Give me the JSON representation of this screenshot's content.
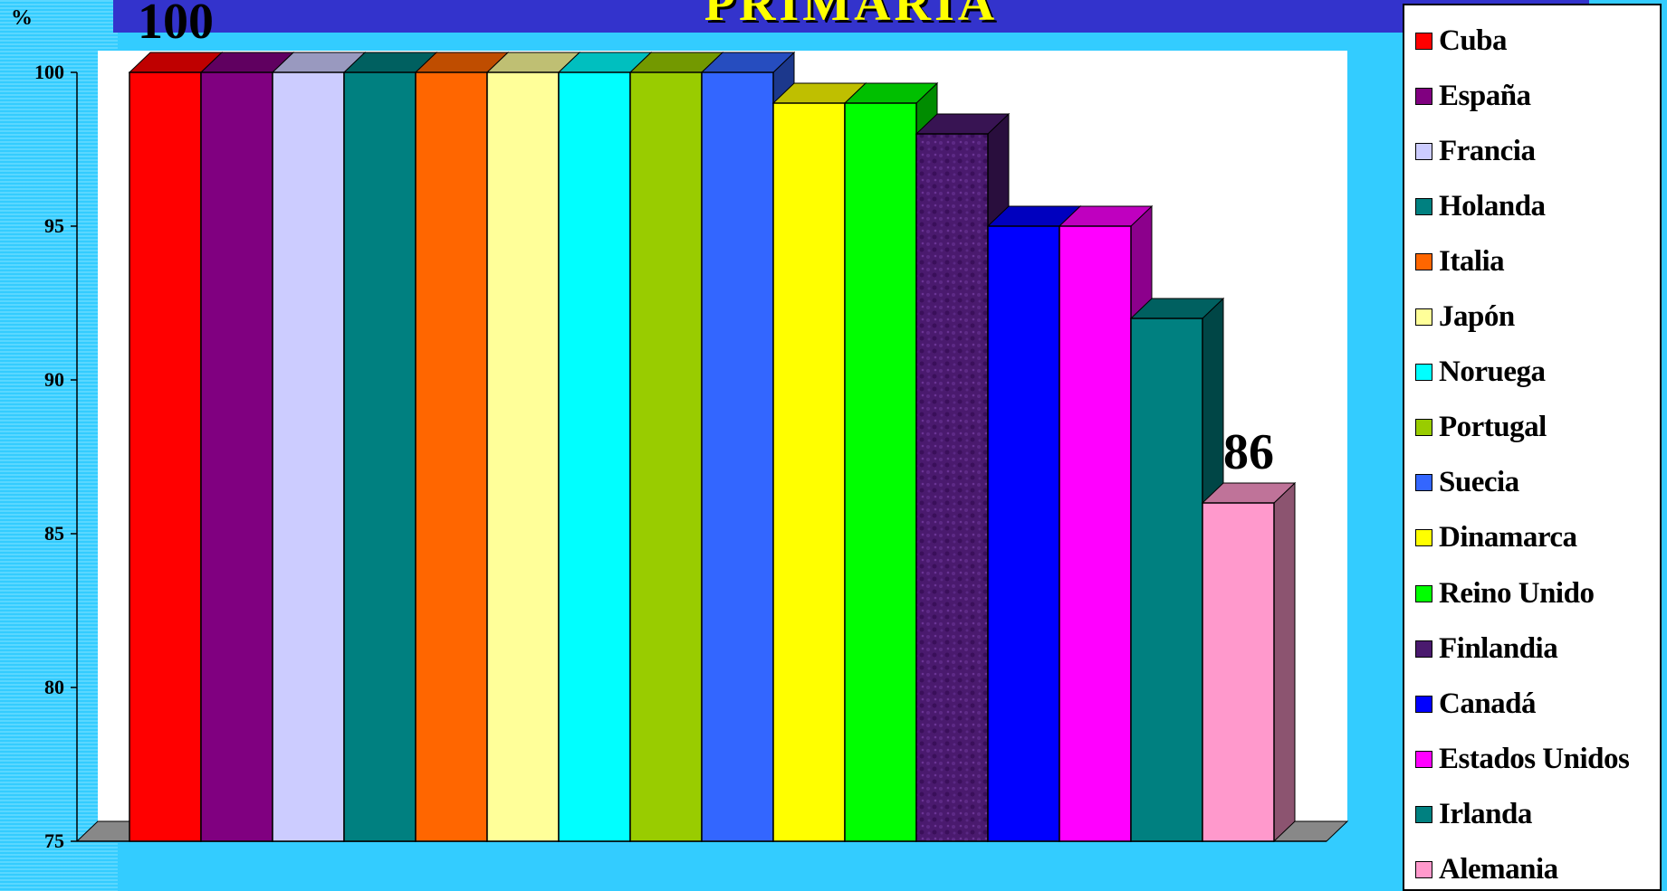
{
  "header": {
    "title": "PRIMARIA"
  },
  "chart_data": {
    "type": "bar",
    "title": "PRIMARIA",
    "ylabel": "%",
    "xlabel": "",
    "ylim": [
      75,
      100
    ],
    "yticks": [
      75,
      80,
      85,
      90,
      95,
      100
    ],
    "grid": false,
    "legend_position": "right",
    "categories": [
      "Cuba",
      "España",
      "Francia",
      "Holanda",
      "Italia",
      "Japón",
      "Noruega",
      "Portugal",
      "Suecia",
      "Dinamarca",
      "Reino Unido",
      "Finlandia",
      "Canadá",
      "Estados Unidos",
      "Irlanda",
      "Alemania"
    ],
    "values": [
      100,
      100,
      100,
      100,
      100,
      100,
      100,
      100,
      100,
      99,
      99,
      98,
      95,
      95,
      92,
      86
    ],
    "colors": [
      "#ff0000",
      "#800080",
      "#ccccff",
      "#008080",
      "#ff6600",
      "#ffff99",
      "#00ffff",
      "#99cc00",
      "#3366ff",
      "#ffff00",
      "#00ff00",
      "#4a1a6e",
      "#0000ff",
      "#ff00ff",
      "#008080",
      "#ff99cc"
    ],
    "data_labels": [
      {
        "category": "Cuba",
        "text": "100"
      },
      {
        "category": "Alemania",
        "text": "86"
      }
    ]
  }
}
